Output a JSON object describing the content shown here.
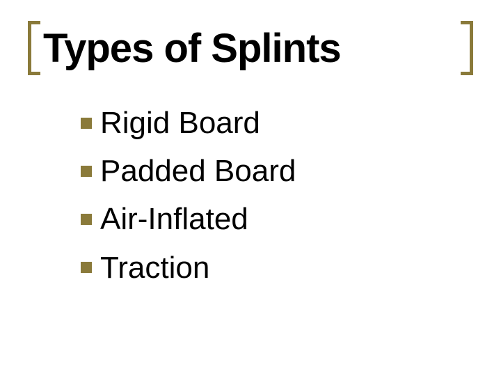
{
  "slide": {
    "title": "Types of Splints",
    "title_fontsize": 58,
    "title_color": "#000000",
    "bracket_color": "#8a7a3a",
    "bracket_thickness": 5,
    "bullet_color": "#8a7a3a",
    "bullet_size": 16,
    "item_fontsize": 44,
    "item_color": "#000000",
    "background_color": "#ffffff",
    "items": [
      {
        "label": "Rigid Board"
      },
      {
        "label": "Padded Board"
      },
      {
        "label": "Air-Inflated"
      },
      {
        "label": "Traction"
      }
    ]
  }
}
